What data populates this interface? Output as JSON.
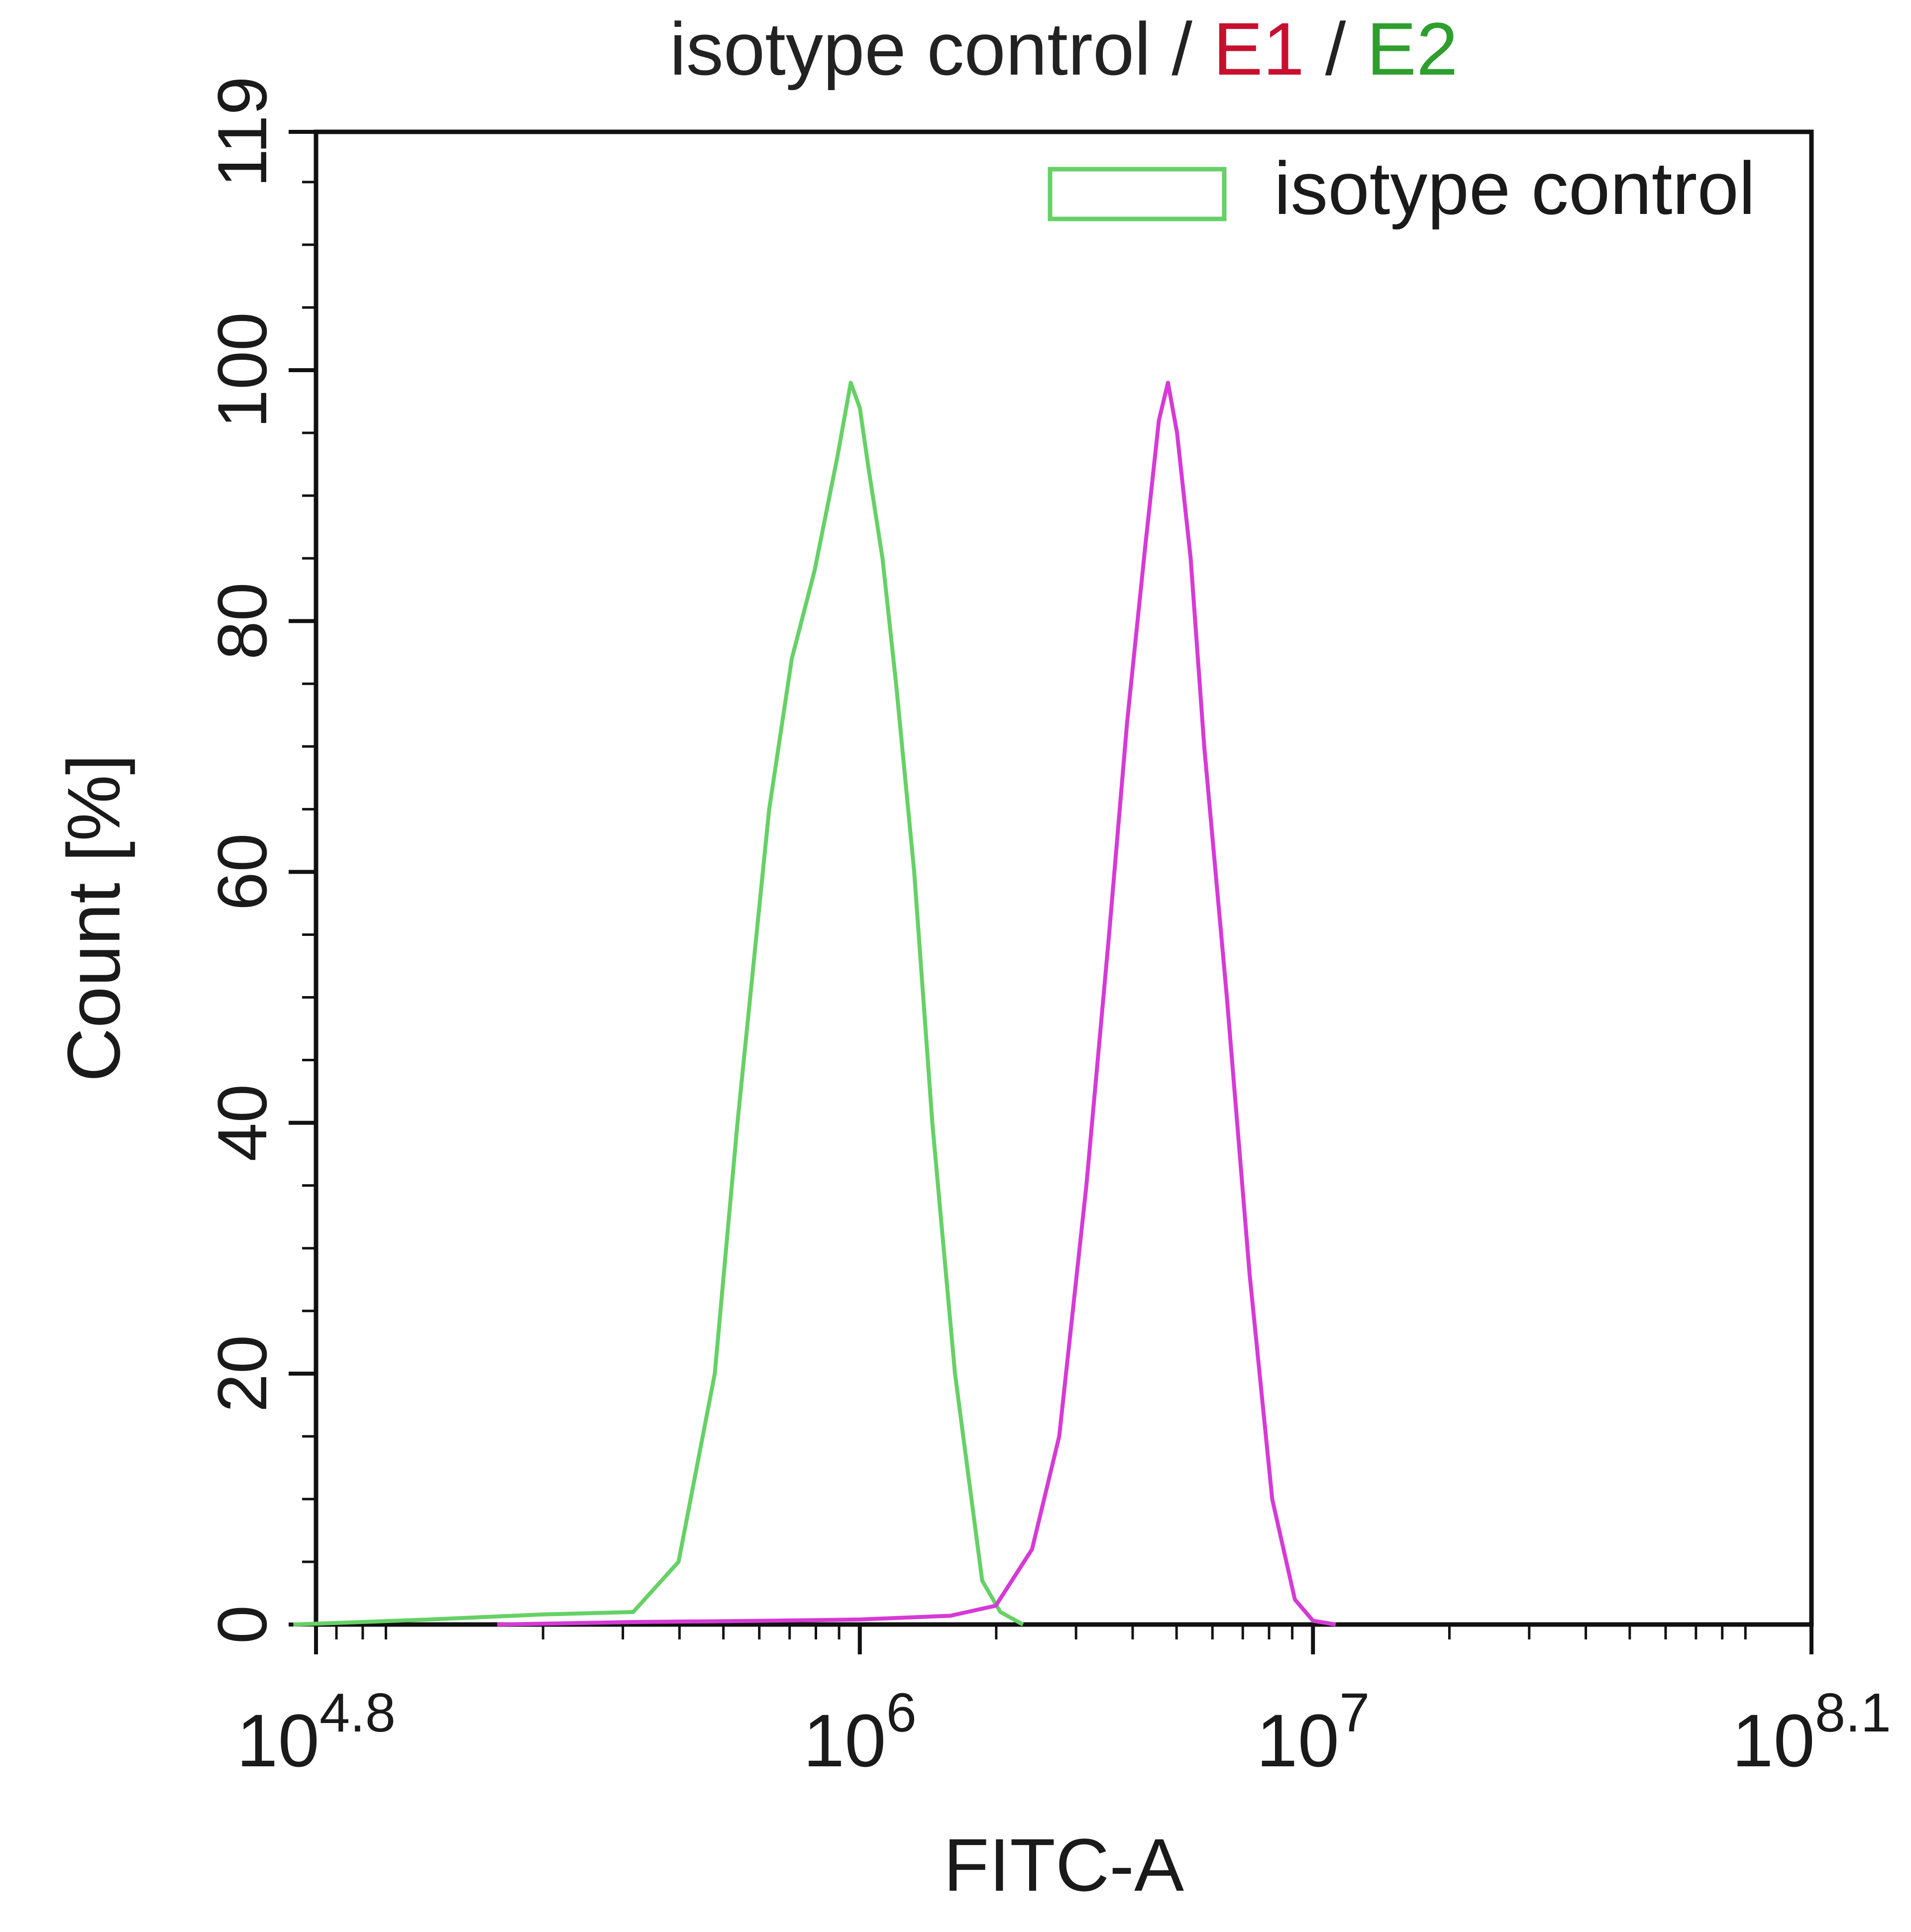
{
  "chart_data": {
    "type": "line",
    "title_parts": [
      {
        "text": "isotype control / ",
        "color": "#222222"
      },
      {
        "text": "E1",
        "color": "#c8102e"
      },
      {
        "text": " / ",
        "color": "#222222"
      },
      {
        "text": "E2",
        "color": "#2e9e2e"
      }
    ],
    "xlabel": "FITC-A",
    "ylabel": "Count  [%]",
    "x_scale": "log10",
    "xlim_exponent": [
      4.8,
      8.1
    ],
    "ylim": [
      0,
      119
    ],
    "x_ticks": [
      {
        "base": "10",
        "exp": "4.8",
        "value": 4.8
      },
      {
        "base": "10",
        "exp": "6",
        "value": 6
      },
      {
        "base": "10",
        "exp": "7",
        "value": 7
      },
      {
        "base": "10",
        "exp": "8.1",
        "value": 8.1
      }
    ],
    "y_ticks": [
      "0",
      "20",
      "40",
      "60",
      "80",
      "100",
      "119"
    ],
    "legend": {
      "position": "top-right",
      "entries": [
        {
          "label": "isotype control",
          "color": "#66d166"
        }
      ]
    },
    "series": [
      {
        "name": "isotype control",
        "color": "#66d166",
        "x_log10": [
          5.05,
          5.3,
          5.5,
          5.6,
          5.68,
          5.73,
          5.8,
          5.85,
          5.9,
          5.95,
          5.98,
          6.0,
          6.02,
          6.05,
          6.08,
          6.12,
          6.16,
          6.21,
          6.27,
          6.31
        ],
        "y": [
          0.4,
          0.8,
          1.0,
          5.0,
          20.0,
          40.0,
          65.0,
          77.0,
          84.0,
          93.0,
          99.0,
          97.0,
          92.0,
          85.0,
          75.0,
          60.0,
          40.0,
          20.0,
          3.5,
          1.0
        ]
      },
      {
        "name": "",
        "color": "#d63ad6",
        "x_log10": [
          5.5,
          5.8,
          6.0,
          6.2,
          6.3,
          6.38,
          6.44,
          6.5,
          6.55,
          6.59,
          6.63,
          6.66,
          6.68,
          6.7,
          6.73,
          6.76,
          6.81,
          6.86,
          6.91,
          6.96,
          7.0
        ],
        "y": [
          0.2,
          0.3,
          0.4,
          0.7,
          1.5,
          6.0,
          15.0,
          35.0,
          55.0,
          72.0,
          86.0,
          96.0,
          99.0,
          95.0,
          85.0,
          70.0,
          50.0,
          28.0,
          10.0,
          2.0,
          0.3
        ]
      }
    ]
  }
}
